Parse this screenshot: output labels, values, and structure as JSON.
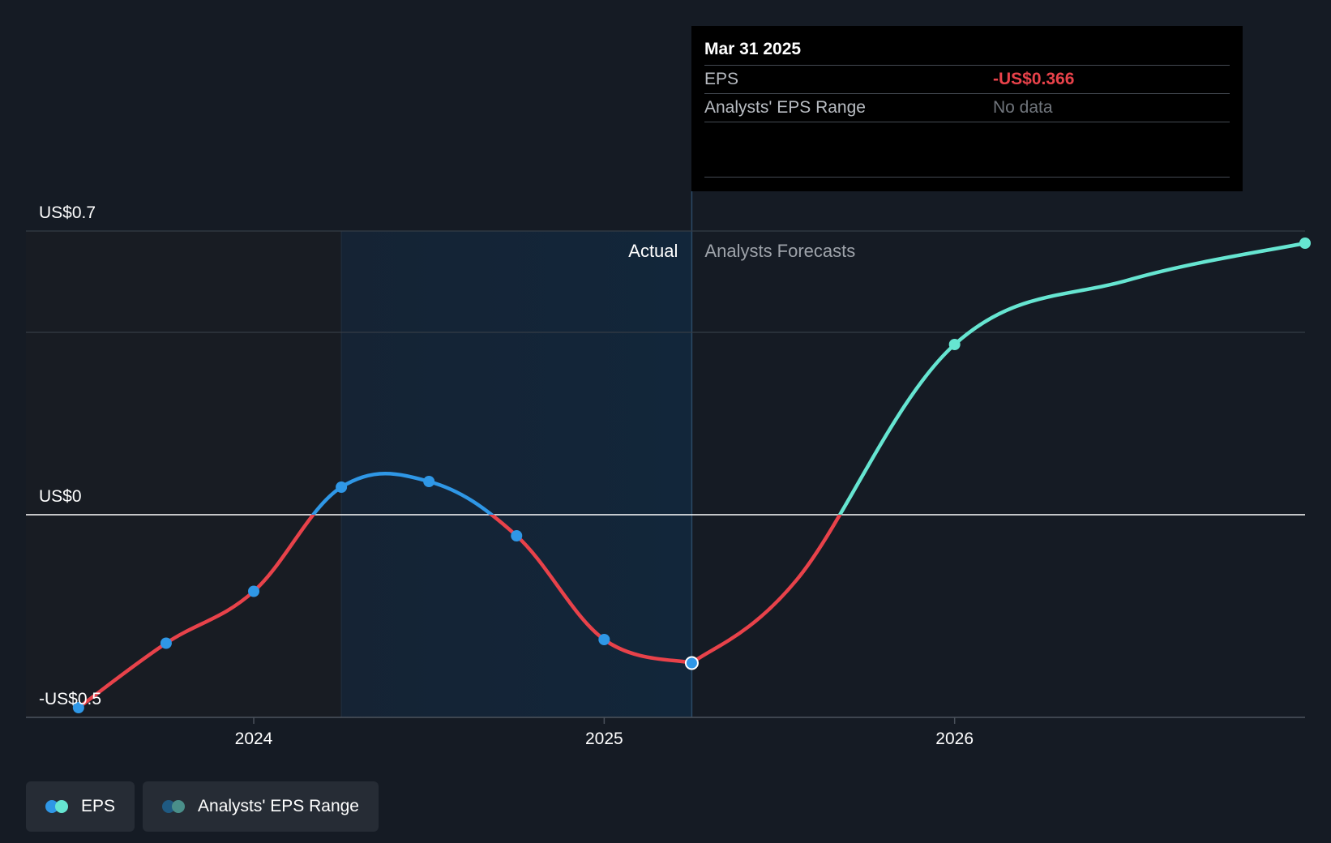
{
  "chart_data": {
    "type": "line",
    "title": "",
    "xlabel": "",
    "ylabel": "",
    "ylim": [
      -0.5,
      0.7
    ],
    "y_ticks": [
      {
        "value": 0.7,
        "label": "US$0.7"
      },
      {
        "value": 0.0,
        "label": "US$0"
      },
      {
        "value": -0.5,
        "label": "-US$0.5"
      }
    ],
    "x_ticks": [
      {
        "value": 2024.0,
        "label": "2024"
      },
      {
        "value": 2025.0,
        "label": "2025"
      },
      {
        "value": 2026.0,
        "label": "2026"
      }
    ],
    "xlim": [
      2023.35,
      2027.0
    ],
    "grid": true,
    "highlight_range": [
      2024.25,
      2025.25
    ],
    "split_x": 2025.25,
    "series": [
      {
        "name": "EPS (Actual)",
        "x": [
          2023.5,
          2023.75,
          2024.0,
          2024.25,
          2024.5,
          2024.75,
          2025.0,
          2025.25
        ],
        "values": [
          -0.476,
          -0.317,
          -0.189,
          0.068,
          0.082,
          -0.052,
          -0.308,
          -0.366
        ]
      },
      {
        "name": "EPS (Analysts Forecasts)",
        "x": [
          2025.25,
          2026.0,
          2027.0
        ],
        "values": [
          -0.366,
          0.42,
          0.67
        ]
      }
    ],
    "selected_point": {
      "x": 2025.25,
      "value": -0.366
    },
    "region_labels": {
      "actual": "Actual",
      "forecast": "Analysts Forecasts"
    },
    "colors": {
      "positive": "#2f97e6",
      "negative": "#e8424a",
      "forecast": "#66e5d1",
      "marker": "#2f97e6",
      "zero_line": "#ffffff",
      "grid": "#353c46"
    }
  },
  "tooltip": {
    "date": "Mar 31 2025",
    "rows": [
      {
        "key": "EPS",
        "value": "-US$0.366"
      },
      {
        "key": "Analysts' EPS Range",
        "value": "No data"
      }
    ]
  },
  "legend": {
    "items": [
      {
        "label": "EPS",
        "colors": [
          "#2f97e6",
          "#66e5d1"
        ]
      },
      {
        "label": "Analysts' EPS Range",
        "colors": [
          "#1f5a82",
          "#4a8f8a"
        ]
      }
    ]
  }
}
